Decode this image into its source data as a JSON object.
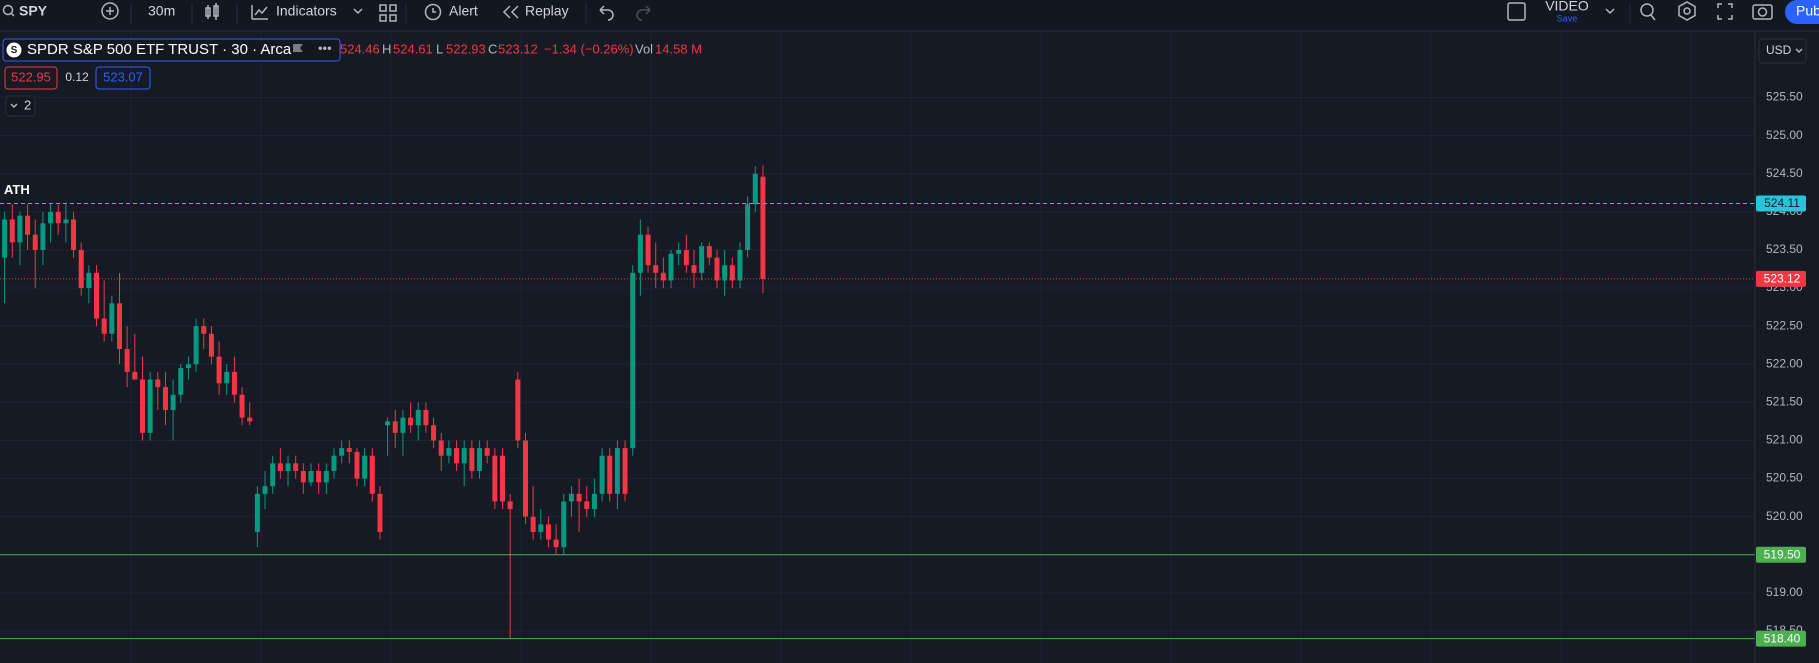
{
  "toolbar": {
    "symbol": "SPY",
    "interval": "30m",
    "indicators": "Indicators",
    "alert": "Alert",
    "replay": "Replay",
    "video": "VIDEO",
    "save": "Save",
    "publish": "Pub"
  },
  "legend": {
    "instrument": "SPDR S&P 500 ETF TRUST · 30 · Arca",
    "high_label": "H",
    "low_label": "L",
    "close_label": "C",
    "change": "−1.34 (−0.26%)",
    "volume_label": "Vol",
    "volume": "14.58 M",
    "bid": "522.95",
    "spread": "0.12",
    "ask": "523.07",
    "collapsed": "2",
    "currency": "USD"
  },
  "chart_data": {
    "type": "candlestick",
    "up_color": "#089981",
    "down_color": "#f23645",
    "ylim": [
      518.08,
      526.36
    ],
    "yticks": [
      {
        "value": 518.5,
        "label": "518.50"
      },
      {
        "value": 519,
        "label": "519.00"
      },
      {
        "value": 519.5,
        "label": "519.50"
      },
      {
        "value": 520,
        "label": "520.00"
      },
      {
        "value": 520.5,
        "label": "520.50"
      },
      {
        "value": 521,
        "label": "521.00"
      },
      {
        "value": 521.5,
        "label": "521.50"
      },
      {
        "value": 522,
        "label": "522.00"
      },
      {
        "value": 522.5,
        "label": "522.50"
      },
      {
        "value": 523,
        "label": "523.00"
      },
      {
        "value": 523.5,
        "label": "523.50"
      },
      {
        "value": 524,
        "label": "524.00"
      },
      {
        "value": 524.5,
        "label": "524.50"
      },
      {
        "value": 525,
        "label": "525.00"
      },
      {
        "value": 525.5,
        "label": "525.50"
      }
    ],
    "grid": true,
    "lines": [
      {
        "name": "ATH",
        "value": 524.11,
        "color": "#26c6da",
        "label_text_color": "#131722",
        "style": "dashed"
      },
      {
        "value": 523.12,
        "color": "#f23645",
        "label_text_color": "#ffffff",
        "style": "dotted"
      },
      {
        "value": 519.5,
        "label": "519.50",
        "color": "#4caf50",
        "label_text_color": "#ffffff",
        "style": "solid"
      },
      {
        "value": 518.4,
        "label": "518.40",
        "color": "#4caf50",
        "label_text_color": "#ffffff",
        "style": "solid"
      }
    ],
    "ohlc": [
      [
        523.4,
        524.0,
        522.8,
        523.9
      ],
      [
        523.9,
        524.1,
        523.4,
        523.6
      ],
      [
        523.6,
        524.0,
        523.3,
        523.95
      ],
      [
        523.95,
        524.1,
        523.5,
        523.7
      ],
      [
        523.7,
        523.9,
        523.0,
        523.5
      ],
      [
        523.5,
        524.0,
        523.3,
        523.85
      ],
      [
        523.85,
        524.1,
        523.6,
        524.0
      ],
      [
        524.0,
        524.1,
        523.7,
        523.85
      ],
      [
        523.85,
        524.1,
        523.6,
        523.9
      ],
      [
        523.9,
        524.0,
        523.4,
        523.5
      ],
      [
        523.5,
        523.6,
        522.9,
        523.0
      ],
      [
        523.0,
        523.3,
        522.8,
        523.2
      ],
      [
        523.2,
        523.3,
        522.5,
        522.6
      ],
      [
        522.6,
        523.1,
        522.3,
        522.4
      ],
      [
        522.4,
        522.9,
        522.3,
        522.8
      ],
      [
        522.8,
        523.2,
        522.0,
        522.2
      ],
      [
        522.2,
        522.5,
        521.7,
        521.9
      ],
      [
        521.9,
        522.4,
        521.8,
        521.8
      ],
      [
        521.8,
        522.1,
        521.0,
        521.1
      ],
      [
        521.1,
        521.9,
        521.0,
        521.8
      ],
      [
        521.8,
        521.9,
        521.4,
        521.7
      ],
      [
        521.7,
        521.9,
        521.2,
        521.4
      ],
      [
        521.4,
        521.8,
        521.0,
        521.6
      ],
      [
        521.6,
        522.0,
        521.5,
        521.95
      ],
      [
        521.95,
        522.1,
        521.8,
        522.0
      ],
      [
        522.0,
        522.6,
        521.9,
        522.5
      ],
      [
        522.5,
        522.6,
        522.2,
        522.4
      ],
      [
        522.4,
        522.5,
        522.0,
        522.1
      ],
      [
        522.1,
        522.3,
        521.6,
        521.75
      ],
      [
        521.75,
        522.0,
        521.6,
        521.9
      ],
      [
        521.9,
        522.1,
        521.5,
        521.6
      ],
      [
        521.6,
        521.7,
        521.2,
        521.3
      ],
      [
        521.3,
        521.5,
        521.2,
        521.25
      ],
      [
        519.8,
        520.4,
        519.6,
        520.3
      ],
      [
        520.3,
        520.6,
        520.1,
        520.4
      ],
      [
        520.4,
        520.8,
        520.3,
        520.7
      ],
      [
        520.7,
        520.9,
        520.5,
        520.6
      ],
      [
        520.6,
        520.8,
        520.4,
        520.7
      ],
      [
        520.7,
        520.8,
        520.5,
        520.6
      ],
      [
        520.6,
        520.7,
        520.3,
        520.45
      ],
      [
        520.45,
        520.7,
        520.4,
        520.6
      ],
      [
        520.6,
        520.7,
        520.3,
        520.45
      ],
      [
        520.45,
        520.7,
        520.3,
        520.6
      ],
      [
        520.6,
        520.9,
        520.5,
        520.8
      ],
      [
        520.8,
        521.0,
        520.7,
        520.9
      ],
      [
        520.9,
        521.0,
        520.7,
        520.85
      ],
      [
        520.85,
        520.9,
        520.4,
        520.5
      ],
      [
        520.5,
        520.9,
        520.4,
        520.8
      ],
      [
        520.8,
        520.9,
        520.2,
        520.3
      ],
      [
        520.3,
        520.4,
        519.7,
        519.8
      ],
      [
        521.2,
        521.3,
        520.8,
        521.25
      ],
      [
        521.25,
        521.4,
        520.9,
        521.1
      ],
      [
        521.1,
        521.4,
        520.8,
        521.3
      ],
      [
        521.3,
        521.5,
        521.1,
        521.2
      ],
      [
        521.2,
        521.5,
        521.0,
        521.4
      ],
      [
        521.4,
        521.5,
        521.1,
        521.2
      ],
      [
        521.2,
        521.3,
        520.9,
        521.0
      ],
      [
        521.0,
        521.1,
        520.6,
        520.8
      ],
      [
        520.8,
        521.0,
        520.7,
        520.9
      ],
      [
        520.9,
        521.0,
        520.6,
        520.7
      ],
      [
        520.7,
        521.0,
        520.4,
        520.9
      ],
      [
        520.9,
        521.0,
        520.5,
        520.6
      ],
      [
        520.6,
        521.0,
        520.5,
        520.9
      ],
      [
        520.9,
        521.0,
        520.7,
        520.8
      ],
      [
        520.8,
        520.9,
        520.1,
        520.2
      ],
      [
        520.8,
        520.9,
        520.1,
        520.2
      ],
      [
        520.2,
        520.3,
        518.4,
        520.1
      ],
      [
        521.8,
        521.9,
        520.9,
        521.0
      ],
      [
        521.0,
        521.1,
        519.9,
        520.0
      ],
      [
        520.0,
        520.4,
        519.7,
        519.8
      ],
      [
        519.8,
        520.1,
        519.7,
        519.9
      ],
      [
        519.9,
        520.0,
        519.6,
        519.7
      ],
      [
        519.7,
        519.9,
        519.5,
        519.6
      ],
      [
        519.6,
        520.3,
        519.5,
        520.2
      ],
      [
        520.2,
        520.4,
        520.0,
        520.3
      ],
      [
        520.3,
        520.5,
        519.8,
        520.2
      ],
      [
        520.2,
        520.4,
        520.0,
        520.1
      ],
      [
        520.1,
        520.5,
        520.0,
        520.3
      ],
      [
        520.3,
        520.9,
        520.2,
        520.8
      ],
      [
        520.8,
        520.9,
        520.2,
        520.3
      ],
      [
        520.3,
        521.0,
        520.1,
        520.9
      ],
      [
        520.9,
        521.0,
        520.2,
        520.3
      ],
      [
        520.9,
        523.3,
        520.8,
        523.2
      ],
      [
        523.2,
        523.9,
        522.9,
        523.7
      ],
      [
        523.7,
        523.8,
        523.2,
        523.3
      ],
      [
        523.3,
        523.6,
        523.0,
        523.2
      ],
      [
        523.2,
        523.4,
        523.0,
        523.1
      ],
      [
        523.1,
        523.5,
        523.0,
        523.45
      ],
      [
        523.45,
        523.6,
        523.3,
        523.5
      ],
      [
        523.5,
        523.7,
        523.2,
        523.3
      ],
      [
        523.3,
        523.5,
        523.0,
        523.2
      ],
      [
        523.2,
        523.6,
        523.1,
        523.55
      ],
      [
        523.55,
        523.6,
        523.3,
        523.4
      ],
      [
        523.4,
        523.5,
        523.0,
        523.1
      ],
      [
        523.1,
        523.5,
        522.9,
        523.3
      ],
      [
        523.3,
        523.4,
        523.0,
        523.1
      ],
      [
        523.1,
        523.6,
        523.0,
        523.5
      ],
      [
        523.5,
        524.2,
        523.4,
        524.1
      ],
      [
        524.1,
        524.6,
        524.0,
        524.5
      ],
      [
        524.46,
        524.61,
        522.93,
        523.12
      ]
    ]
  }
}
